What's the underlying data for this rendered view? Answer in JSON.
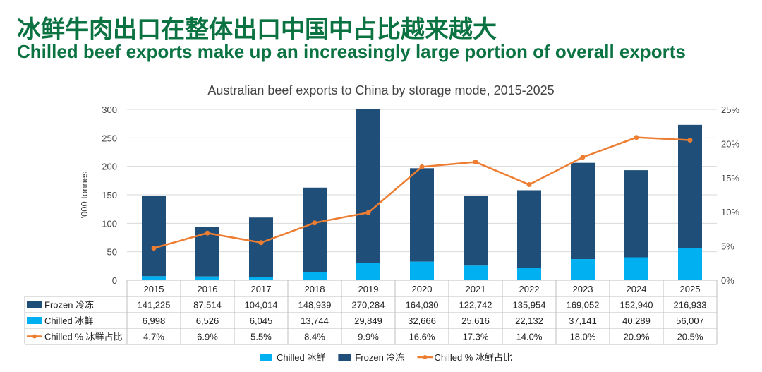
{
  "heading_cn": "冰鲜牛肉出口在整体出口中国中占比越来越大",
  "heading_en": "Chilled beef exports make up an increasingly large portion of overall exports",
  "chart_data": {
    "type": "bar",
    "stacked": true,
    "title": "Australian beef exports to China by storage mode, 2015-2025",
    "ylabel": "'000 tonnes",
    "ylim": [
      0,
      300
    ],
    "yticks": [
      "0",
      "50",
      "100",
      "150",
      "200",
      "250",
      "300"
    ],
    "y2lim": [
      0,
      25
    ],
    "y2ticks": [
      "0%",
      "5%",
      "10%",
      "15%",
      "20%",
      "25%"
    ],
    "categories": [
      "2015",
      "2016",
      "2017",
      "2018",
      "2019",
      "2020",
      "2021",
      "2022",
      "2023",
      "2024",
      "2025"
    ],
    "grid": true,
    "legend": "bottom",
    "series": [
      {
        "name": "Frozen 冷冻",
        "color": "#1f4e79",
        "type": "bar",
        "values": [
          141225,
          87514,
          104014,
          148939,
          270284,
          164030,
          122742,
          135954,
          169052,
          152940,
          216933
        ],
        "labels": [
          "141,225",
          "87,514",
          "104,014",
          "148,939",
          "270,284",
          "164,030",
          "122,742",
          "135,954",
          "169,052",
          "152,940",
          "216,933"
        ]
      },
      {
        "name": "Chilled 冰鲜",
        "color": "#00b0f0",
        "type": "bar",
        "values": [
          6998,
          6526,
          6045,
          13744,
          29849,
          32666,
          25616,
          22132,
          37141,
          40289,
          56007
        ],
        "labels": [
          "6,998",
          "6,526",
          "6,045",
          "13,744",
          "29,849",
          "32,666",
          "25,616",
          "22,132",
          "37,141",
          "40,289",
          "56,007"
        ]
      },
      {
        "name": "Chilled % 冰鲜占比",
        "color": "#ed7d31",
        "type": "line",
        "axis": "right",
        "values": [
          4.7,
          6.9,
          5.5,
          8.4,
          9.9,
          16.6,
          17.3,
          14.0,
          18.0,
          20.9,
          20.5
        ],
        "labels": [
          "4.7%",
          "6.9%",
          "5.5%",
          "8.4%",
          "9.9%",
          "16.6%",
          "17.3%",
          "14.0%",
          "18.0%",
          "20.9%",
          "20.5%"
        ]
      }
    ],
    "legend_order": [
      1,
      0,
      2
    ]
  }
}
